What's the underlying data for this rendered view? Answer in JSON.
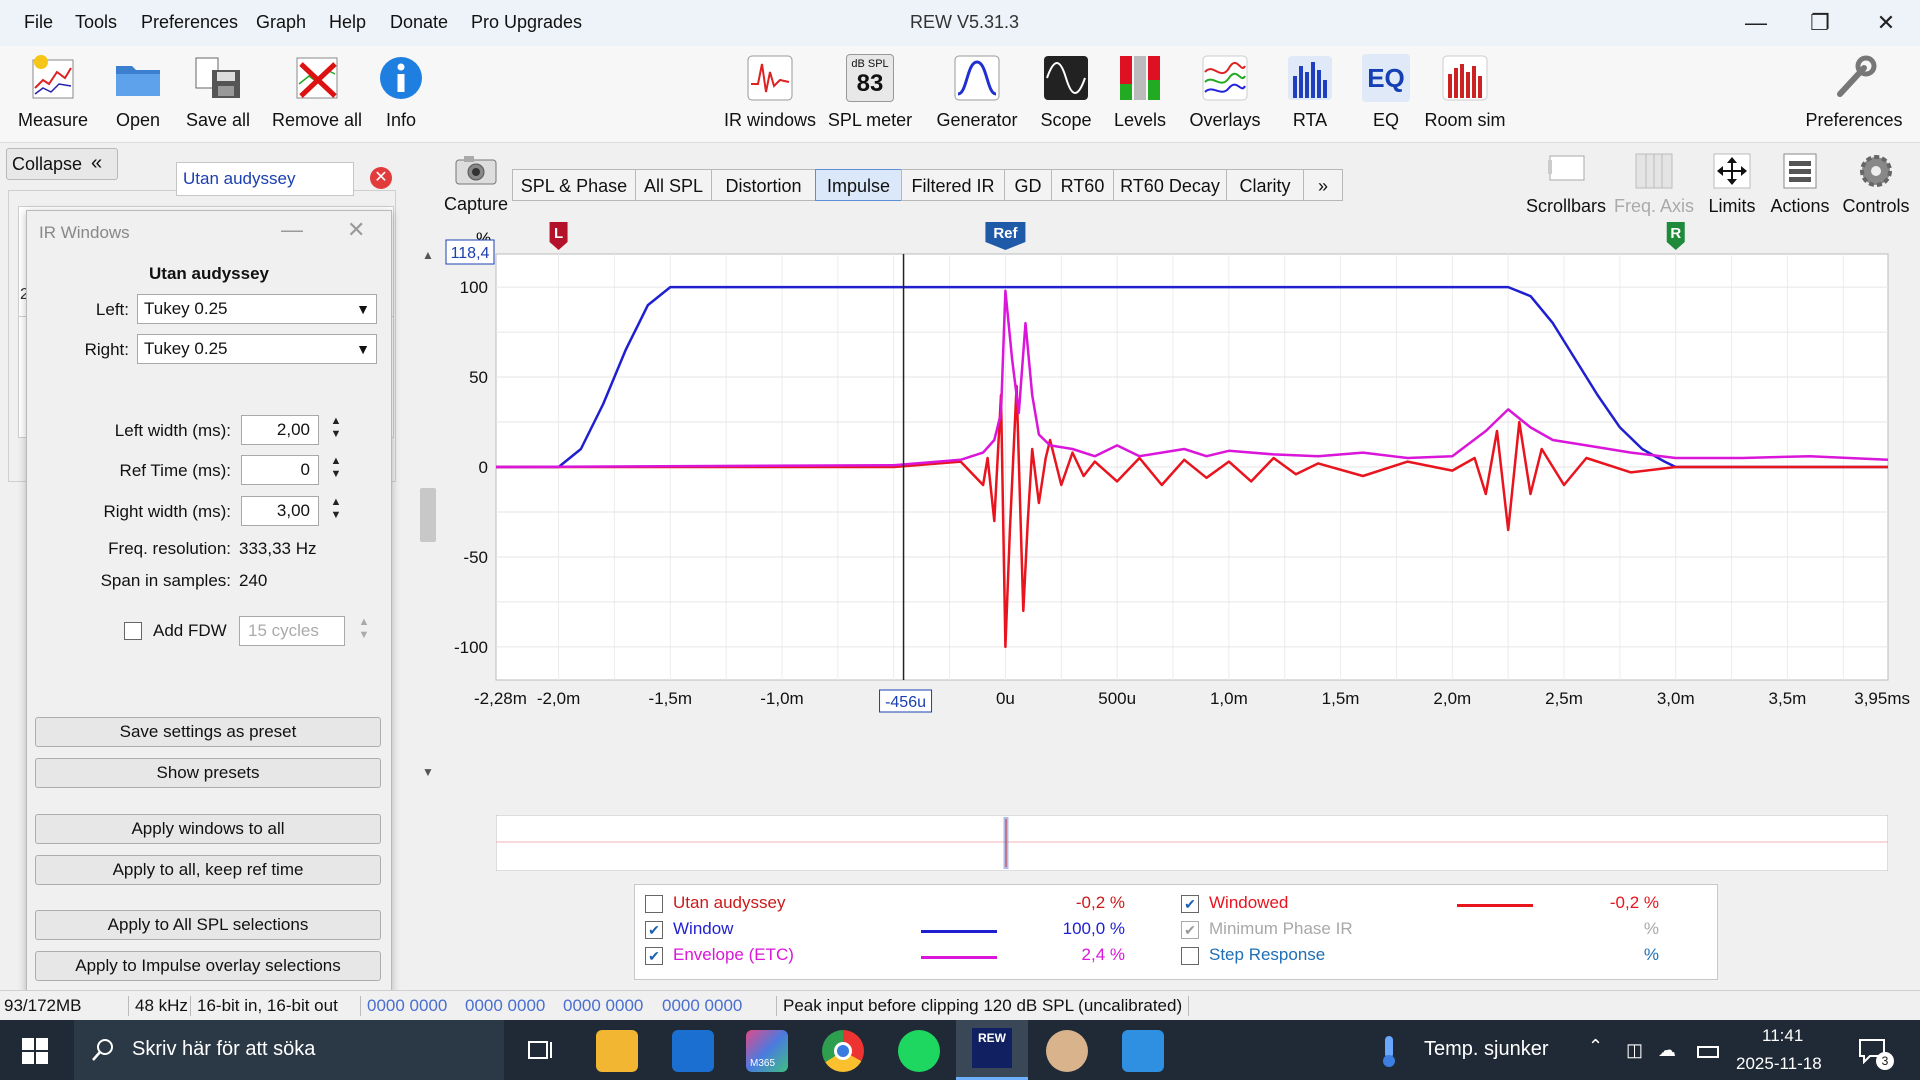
{
  "window": {
    "title": "REW V5.31.3"
  },
  "menu": [
    "File",
    "Tools",
    "Preferences",
    "Graph",
    "Help",
    "Donate",
    "Pro Upgrades"
  ],
  "toolbar": {
    "measure": "Measure",
    "open": "Open",
    "save_all": "Save all",
    "remove_all": "Remove all",
    "info": "Info",
    "ir_windows": "IR windows",
    "spl_meter": "SPL meter",
    "spl_unit": "dB SPL",
    "spl_value": "83",
    "generator": "Generator",
    "scope": "Scope",
    "levels": "Levels",
    "overlays": "Overlays",
    "rta": "RTA",
    "eq": "EQ",
    "eq_icon_text": "EQ",
    "room_sim": "Room sim",
    "preferences": "Preferences"
  },
  "left_panel": {
    "collapse": "Collapse",
    "measurement_name": "Utan audyssey",
    "stub1": "2",
    "stub2": "2"
  },
  "capture": "Capture",
  "tabs": [
    "SPL & Phase",
    "All SPL",
    "Distortion",
    "Impulse",
    "Filtered IR",
    "GD",
    "RT60",
    "RT60 Decay",
    "Clarity",
    "»"
  ],
  "right_tools": {
    "scrollbars": "Scrollbars",
    "freq_axis": "Freq. Axis",
    "limits": "Limits",
    "actions": "Actions",
    "controls": "Controls"
  },
  "dialog": {
    "title": "IR Windows",
    "measurement": "Utan audyssey",
    "left_label": "Left:",
    "left_value": "Tukey 0.25",
    "right_label": "Right:",
    "right_value": "Tukey 0.25",
    "left_width_label": "Left width (ms):",
    "left_width_value": "2,00",
    "ref_time_label": "Ref Time (ms):",
    "ref_time_value": "0",
    "right_width_label": "Right width (ms):",
    "right_width_value": "3,00",
    "freq_res_label": "Freq. resolution:",
    "freq_res_value": "333,33 Hz",
    "span_label": "Span in samples:",
    "span_value": "240",
    "add_fdw_label": "Add FDW",
    "fdw_value": "15 cycles",
    "buttons": [
      "Save settings as preset",
      "Show presets",
      "Apply windows to all",
      "Apply to all, keep ref time",
      "Apply to All SPL selections",
      "Apply to Impulse overlay selections"
    ]
  },
  "graph": {
    "y_unit": "%",
    "y_top_readout": "118,4",
    "y_ticks": [
      "100",
      "50",
      "0",
      "-50",
      "-100"
    ],
    "x_ticks": [
      "-2,28m",
      "-2,0m",
      "-1,5m",
      "-1,0m",
      "0u",
      "500u",
      "1,0m",
      "1,5m",
      "2,0m",
      "2,5m",
      "3,0m",
      "3,5m",
      "3,95ms"
    ],
    "cursor_readout": "-456u",
    "marker_left": "L",
    "marker_ref": "Ref",
    "marker_right": "R"
  },
  "chart_data": {
    "type": "line",
    "xlim": [
      -2.28,
      3.95
    ],
    "ylim": [
      -118.4,
      118.4
    ],
    "xunit": "ms",
    "yunit": "%",
    "cursor_x": -0.456,
    "markers": {
      "L": -2.0,
      "Ref": 0.0,
      "R": 3.0
    },
    "series": [
      {
        "name": "Window",
        "color": "#1f1fd0",
        "x": [
          -2.28,
          -2.0,
          -1.9,
          -1.8,
          -1.7,
          -1.6,
          -1.5,
          2.25,
          2.35,
          2.45,
          2.55,
          2.65,
          2.75,
          2.85,
          2.95,
          3.0,
          3.95
        ],
        "values": [
          0,
          0,
          10,
          35,
          65,
          90,
          100,
          100,
          95,
          80,
          60,
          40,
          22,
          10,
          3,
          0,
          0
        ]
      },
      {
        "name": "Windowed",
        "color": "#e8141e",
        "x": [
          -2.28,
          -0.5,
          -0.2,
          -0.1,
          -0.08,
          -0.05,
          -0.02,
          0.0,
          0.02,
          0.05,
          0.08,
          0.1,
          0.12,
          0.15,
          0.18,
          0.2,
          0.25,
          0.3,
          0.35,
          0.4,
          0.5,
          0.6,
          0.7,
          0.8,
          0.9,
          1.0,
          1.1,
          1.2,
          1.3,
          1.4,
          1.6,
          1.8,
          2.0,
          2.1,
          2.15,
          2.2,
          2.25,
          2.3,
          2.35,
          2.4,
          2.5,
          2.6,
          2.8,
          3.0,
          3.95
        ],
        "values": [
          0,
          0,
          3,
          -10,
          5,
          -30,
          40,
          -100,
          -35,
          45,
          -80,
          -30,
          10,
          -20,
          5,
          15,
          -10,
          8,
          -5,
          3,
          -8,
          5,
          -10,
          4,
          -6,
          3,
          -8,
          5,
          -4,
          2,
          -5,
          3,
          -2,
          5,
          -15,
          20,
          -35,
          25,
          -15,
          10,
          -10,
          5,
          -3,
          0,
          0
        ]
      },
      {
        "name": "Envelope (ETC)",
        "color": "#d916d9",
        "x": [
          -2.28,
          -0.5,
          -0.2,
          -0.1,
          -0.05,
          -0.02,
          0.0,
          0.03,
          0.06,
          0.09,
          0.12,
          0.15,
          0.2,
          0.3,
          0.4,
          0.5,
          0.6,
          0.7,
          0.8,
          0.9,
          1.0,
          1.2,
          1.4,
          1.6,
          1.8,
          2.0,
          2.15,
          2.25,
          2.35,
          2.45,
          2.6,
          2.8,
          3.0,
          3.3,
          3.6,
          3.95
        ],
        "values": [
          0,
          1,
          4,
          8,
          15,
          30,
          98,
          60,
          30,
          80,
          40,
          18,
          12,
          10,
          6,
          12,
          6,
          8,
          10,
          6,
          9,
          7,
          6,
          8,
          5,
          6,
          20,
          32,
          22,
          15,
          12,
          8,
          5,
          5,
          6,
          4
        ]
      }
    ]
  },
  "overview": {},
  "legend": {
    "rows": [
      {
        "checked": false,
        "label": "Utan audyssey",
        "value": "-0,2 %",
        "label_color": "#cc1a1a",
        "line_color": ""
      },
      {
        "checked": true,
        "label": "Window",
        "value": "100,0 %",
        "label_color": "#1f1fd0",
        "line_color": "#1f1fd0"
      },
      {
        "checked": true,
        "label": "Envelope (ETC)",
        "value": "2,4 %",
        "label_color": "#d916d9",
        "line_color": "#d916d9"
      }
    ],
    "rows_right": [
      {
        "checked": true,
        "label": "Windowed",
        "value": "-0,2 %",
        "label_color": "#e8141e",
        "line_color": "#e8141e"
      },
      {
        "checked": true,
        "label": "Minimum Phase IR",
        "value": "%",
        "label_color": "#a8a8a8",
        "line_color": "",
        "disabled": true
      },
      {
        "checked": false,
        "label": "Step Response",
        "value": "%",
        "label_color": "#1f6fb4",
        "line_color": ""
      }
    ]
  },
  "statusbar": {
    "memory": "93/172MB",
    "rate": "48 kHz",
    "bits": "16-bit in, 16-bit out",
    "hex": [
      "0000 0000",
      "0000 0000",
      "0000 0000",
      "0000 0000"
    ],
    "peak": "Peak input before clipping 120 dB SPL (uncalibrated)"
  },
  "taskbar": {
    "search_placeholder": "Skriv här för att söka",
    "weather": "Temp. sjunker",
    "time": "11:41",
    "date": "2025-11-18",
    "notif_count": "3",
    "rew_icon_text": "REW",
    "m365_label": "M365"
  }
}
